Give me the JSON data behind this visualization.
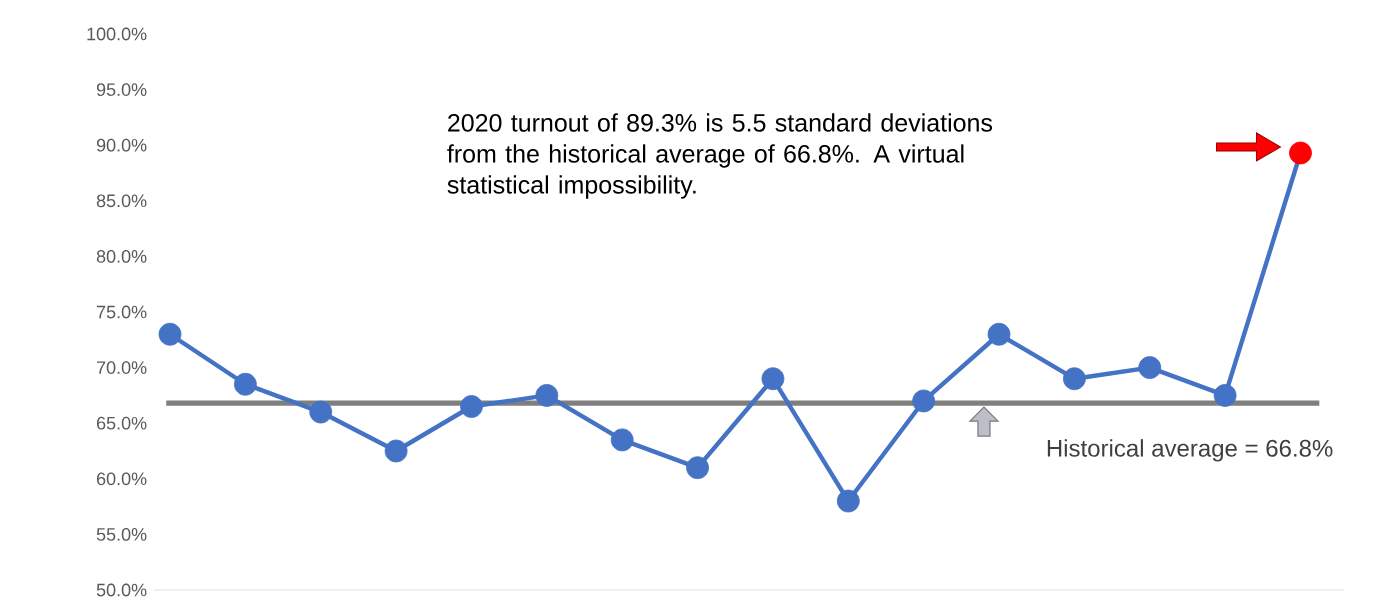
{
  "chart_data": {
    "type": "line",
    "categories": [
      null,
      null,
      null,
      null,
      null,
      null,
      null,
      null,
      null,
      null,
      null,
      null,
      null,
      null,
      null,
      null
    ],
    "series": [
      {
        "color": "#4472c4",
        "colors": [
          "#4472c4",
          "#4472c4",
          "#4472c4",
          "#4472c4",
          "#4472c4",
          "#4472c4",
          "#4472c4",
          "#4472c4",
          "#4472c4",
          "#4472c4",
          "#4472c4",
          "#4472c4",
          "#4472c4",
          "#4472c4",
          "#4472c4",
          "#ff0000"
        ],
        "values": [
          73,
          68.5,
          66,
          62.5,
          66.5,
          67.5,
          63.5,
          61,
          69,
          58,
          67,
          73,
          69,
          70,
          67.5,
          89.3
        ]
      }
    ],
    "ylim": [
      50,
      100
    ],
    "yticks": [
      {
        "value": 50,
        "label": "50.0%"
      },
      {
        "value": 55,
        "label": "55.0%"
      },
      {
        "value": 60,
        "label": "60.0%"
      },
      {
        "value": 65,
        "label": "65.0%"
      },
      {
        "value": 70,
        "label": "70.0%"
      },
      {
        "value": 75,
        "label": "75.0%"
      },
      {
        "value": 80,
        "label": "80.0%"
      },
      {
        "value": 85,
        "label": "85.0%"
      },
      {
        "value": 90,
        "label": "90.0%"
      },
      {
        "value": 95,
        "label": "95.0%"
      },
      {
        "value": 100,
        "label": "100.0%"
      }
    ],
    "ref_lines": [
      {
        "axis": "y",
        "value": 66.8,
        "label": "Historical average = 66.8%",
        "color": "#7f7f7f"
      }
    ],
    "annotations": [
      "2020 turnout of 89.3% is 5.5 standard deviations from the historical average of 66.8%. A virtual statistical impossibility."
    ],
    "marker": "circle",
    "line_style": "solid",
    "grid": false
  }
}
